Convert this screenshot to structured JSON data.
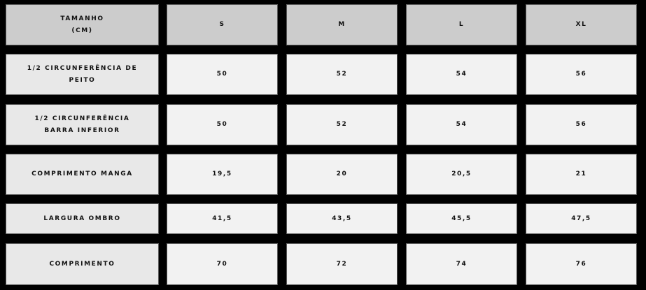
{
  "table": {
    "header": [
      "TAMANHO\n(CM)",
      "S",
      "M",
      "L",
      "XL"
    ],
    "rows": [
      {
        "label": "1/2 CIRCUNFERÊNCIA DE\nPEITO",
        "values": [
          "50",
          "52",
          "54",
          "56"
        ]
      },
      {
        "label": "1/2 CIRCUNFERÊNCIA\nBARRA INFERIOR",
        "values": [
          "50",
          "52",
          "54",
          "56"
        ]
      },
      {
        "label": "COMPRIMENTO MANGA",
        "values": [
          "19,5",
          "20",
          "20,5",
          "21"
        ]
      },
      {
        "label": "LARGURA OMBRO",
        "values": [
          "41,5",
          "43,5",
          "45,5",
          "47,5"
        ]
      },
      {
        "label": "COMPRIMENTO",
        "values": [
          "70",
          "72",
          "74",
          "76"
        ]
      }
    ]
  },
  "colors": {
    "background": "#000000",
    "header": "#cccccc",
    "label_cell": "#e8e8e8",
    "value_cell": "#f2f2f2"
  }
}
